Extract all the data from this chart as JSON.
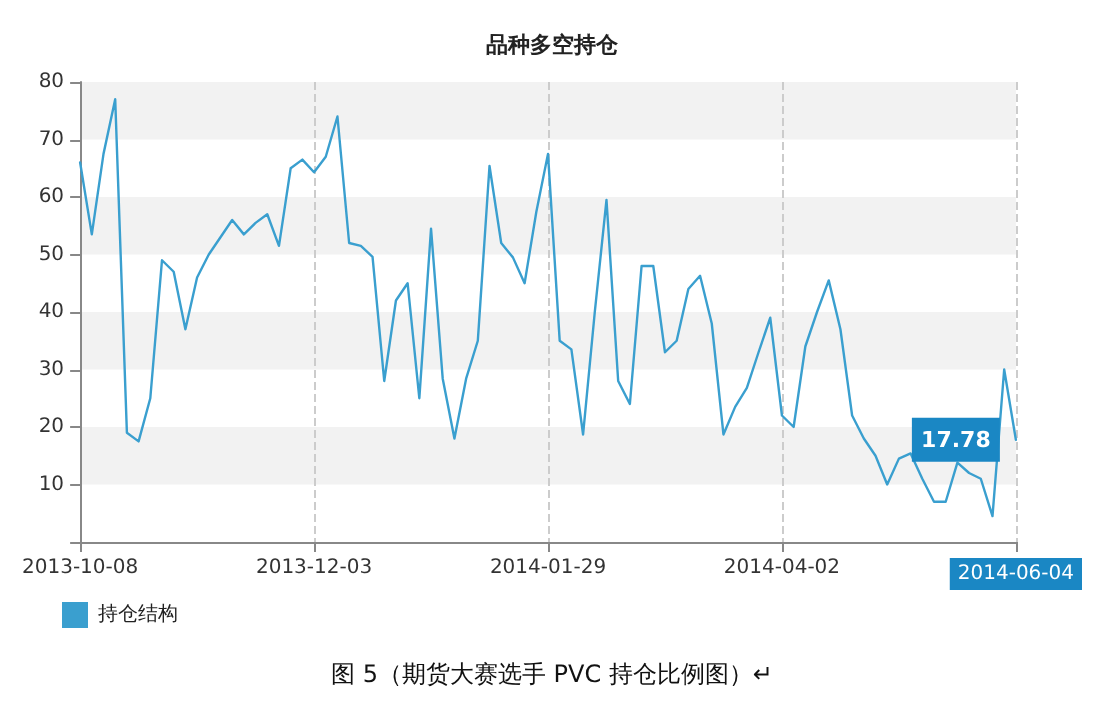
{
  "chart_data": {
    "type": "line",
    "title": "品种多空持仓",
    "categories": [
      "2013-10-08",
      null,
      null,
      null,
      null,
      null,
      null,
      null,
      null,
      null,
      null,
      null,
      null,
      null,
      null,
      null,
      null,
      null,
      null,
      null,
      "2013-12-03",
      null,
      null,
      null,
      null,
      null,
      null,
      null,
      null,
      null,
      null,
      null,
      null,
      null,
      null,
      null,
      null,
      null,
      null,
      null,
      "2014-01-29",
      null,
      null,
      null,
      null,
      null,
      null,
      null,
      null,
      null,
      null,
      null,
      null,
      null,
      null,
      null,
      null,
      null,
      null,
      null,
      "2014-04-02",
      null,
      null,
      null,
      null,
      null,
      null,
      null,
      null,
      null,
      null,
      null,
      null,
      null,
      null,
      null,
      null,
      null,
      null,
      null,
      "2014-06-04"
    ],
    "series": [
      {
        "name": "持仓结构",
        "color": "#3a9fcf",
        "values": [
          66,
          53.5,
          67.5,
          77,
          19,
          17.5,
          25,
          49,
          47,
          37,
          46,
          50,
          53,
          56,
          53.5,
          55.5,
          57,
          51.5,
          65,
          66.5,
          64.3,
          67,
          74,
          52,
          51.5,
          49.6,
          28,
          42,
          45,
          25,
          54.5,
          28.4,
          18,
          28.4,
          35,
          65.4,
          52,
          49.5,
          45,
          57.4,
          67.5,
          35,
          33.5,
          18.7,
          40,
          59.5,
          28,
          24,
          48,
          48,
          33,
          35,
          44,
          46.3,
          38,
          18.7,
          23.5,
          26.8,
          33,
          39,
          22,
          20,
          34,
          40,
          45.5,
          37,
          22,
          18,
          15,
          10,
          14.5,
          15.4,
          11,
          7,
          7,
          13.8,
          12,
          11,
          4.5,
          30,
          17.78
        ]
      }
    ],
    "ylim": [
      0,
      80
    ],
    "yticks": [
      {
        "value": 0,
        "label": null
      },
      10,
      20,
      30,
      40,
      50,
      60,
      70,
      80
    ],
    "grid": true,
    "legend": "bottom left",
    "marker": "none",
    "line_style": "solid",
    "annotations": [
      {
        "text": "17.78",
        "x": "2014-06-04",
        "y": 17.78
      },
      "图 5（期货大赛选手 PVC 持仓比例图）↵"
    ]
  }
}
